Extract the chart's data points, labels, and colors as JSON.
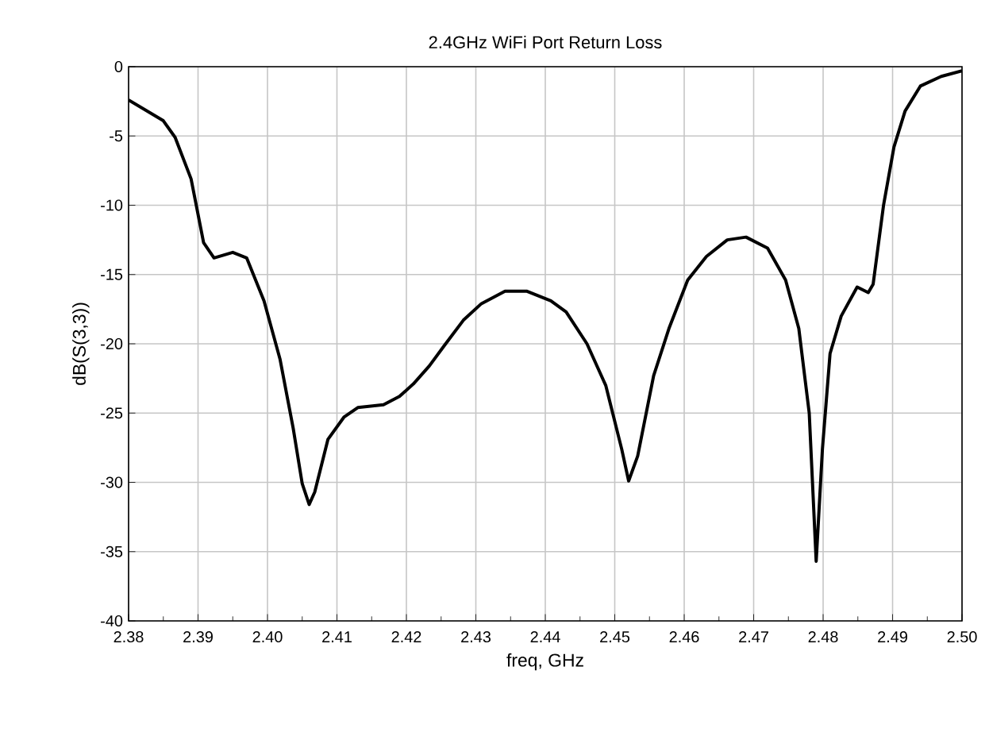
{
  "chart_data": {
    "type": "line",
    "title": "2.4GHz WiFi Port Return Loss",
    "xlabel": "freq, GHz",
    "ylabel": "dB(S(3,3))",
    "color": "#000000",
    "grid": true,
    "xlim": [
      2.38,
      2.5
    ],
    "ylim": [
      -40,
      0
    ],
    "xticks": [
      2.38,
      2.39,
      {
        "value": 2.4,
        "label": "2.40"
      },
      2.41,
      2.42,
      2.43,
      2.44,
      2.45,
      2.46,
      2.47,
      2.48,
      2.49,
      {
        "value": 2.5,
        "label": "2.50"
      }
    ],
    "yticks": [
      -40,
      -35,
      -30,
      -25,
      -20,
      -15,
      -10,
      -5,
      0
    ],
    "x": [
      2.38,
      2.385,
      2.3867,
      2.389,
      2.3908,
      2.3923,
      2.395,
      2.397,
      2.3995,
      2.4018,
      2.4037,
      2.405,
      2.406,
      2.4068,
      2.4087,
      2.411,
      2.413,
      2.4167,
      2.419,
      2.421,
      2.4233,
      2.4255,
      2.4282,
      2.4308,
      2.4342,
      2.4373,
      2.4408,
      2.443,
      2.446,
      2.4487,
      2.451,
      2.452,
      2.4533,
      2.4556,
      2.4578,
      2.4605,
      2.4632,
      2.4662,
      2.4689,
      2.472,
      2.4746,
      2.4765,
      2.478,
      2.479,
      2.4799,
      2.481,
      2.4826,
      2.4849,
      2.4865,
      2.4872,
      2.4887,
      2.4902,
      2.4918,
      2.494,
      2.497,
      2.5
    ],
    "values": [
      -2.4,
      -3.9,
      -5.1,
      -8.1,
      -12.7,
      -13.8,
      -13.4,
      -13.8,
      -16.9,
      -21.1,
      -26.1,
      -30.1,
      -31.6,
      -30.7,
      -26.9,
      -25.3,
      -24.6,
      -24.4,
      -23.8,
      -22.9,
      -21.6,
      -20.1,
      -18.3,
      -17.1,
      -16.2,
      -16.2,
      -16.9,
      -17.7,
      -20.0,
      -23.0,
      -27.6,
      -29.9,
      -28.1,
      -22.3,
      -18.9,
      -15.4,
      -13.7,
      -12.5,
      -12.3,
      -13.1,
      -15.4,
      -18.9,
      -25.0,
      -35.7,
      -27.6,
      -20.7,
      -18.0,
      -15.9,
      -16.3,
      -15.7,
      -10.0,
      -5.8,
      -3.2,
      -1.4,
      -0.7,
      -0.3
    ]
  }
}
